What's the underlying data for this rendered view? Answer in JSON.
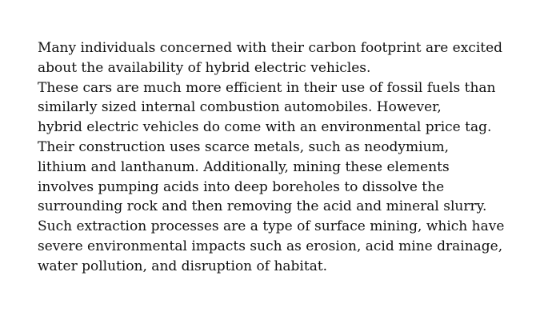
{
  "passage": {
    "lines": [
      "Many individuals concerned with their carbon footprint are excited",
      "about the availability of hybrid electric vehicles.",
      "These cars are much more efficient in their use of fossil fuels than",
      "similarly sized internal combustion automobiles. However,",
      "hybrid electric vehicles do come with an environmental price tag.",
      "Their construction uses scarce metals, such as neodymium,",
      "lithium and lanthanum. Additionally, mining these elements",
      "involves pumping acids into deep boreholes to dissolve the",
      "surrounding rock and then removing the acid and mineral slurry.",
      "Such extraction processes are a type of surface mining, which have",
      "severe environmental impacts such as erosion, acid mine drainage,",
      "water pollution, and disruption of habitat."
    ]
  }
}
